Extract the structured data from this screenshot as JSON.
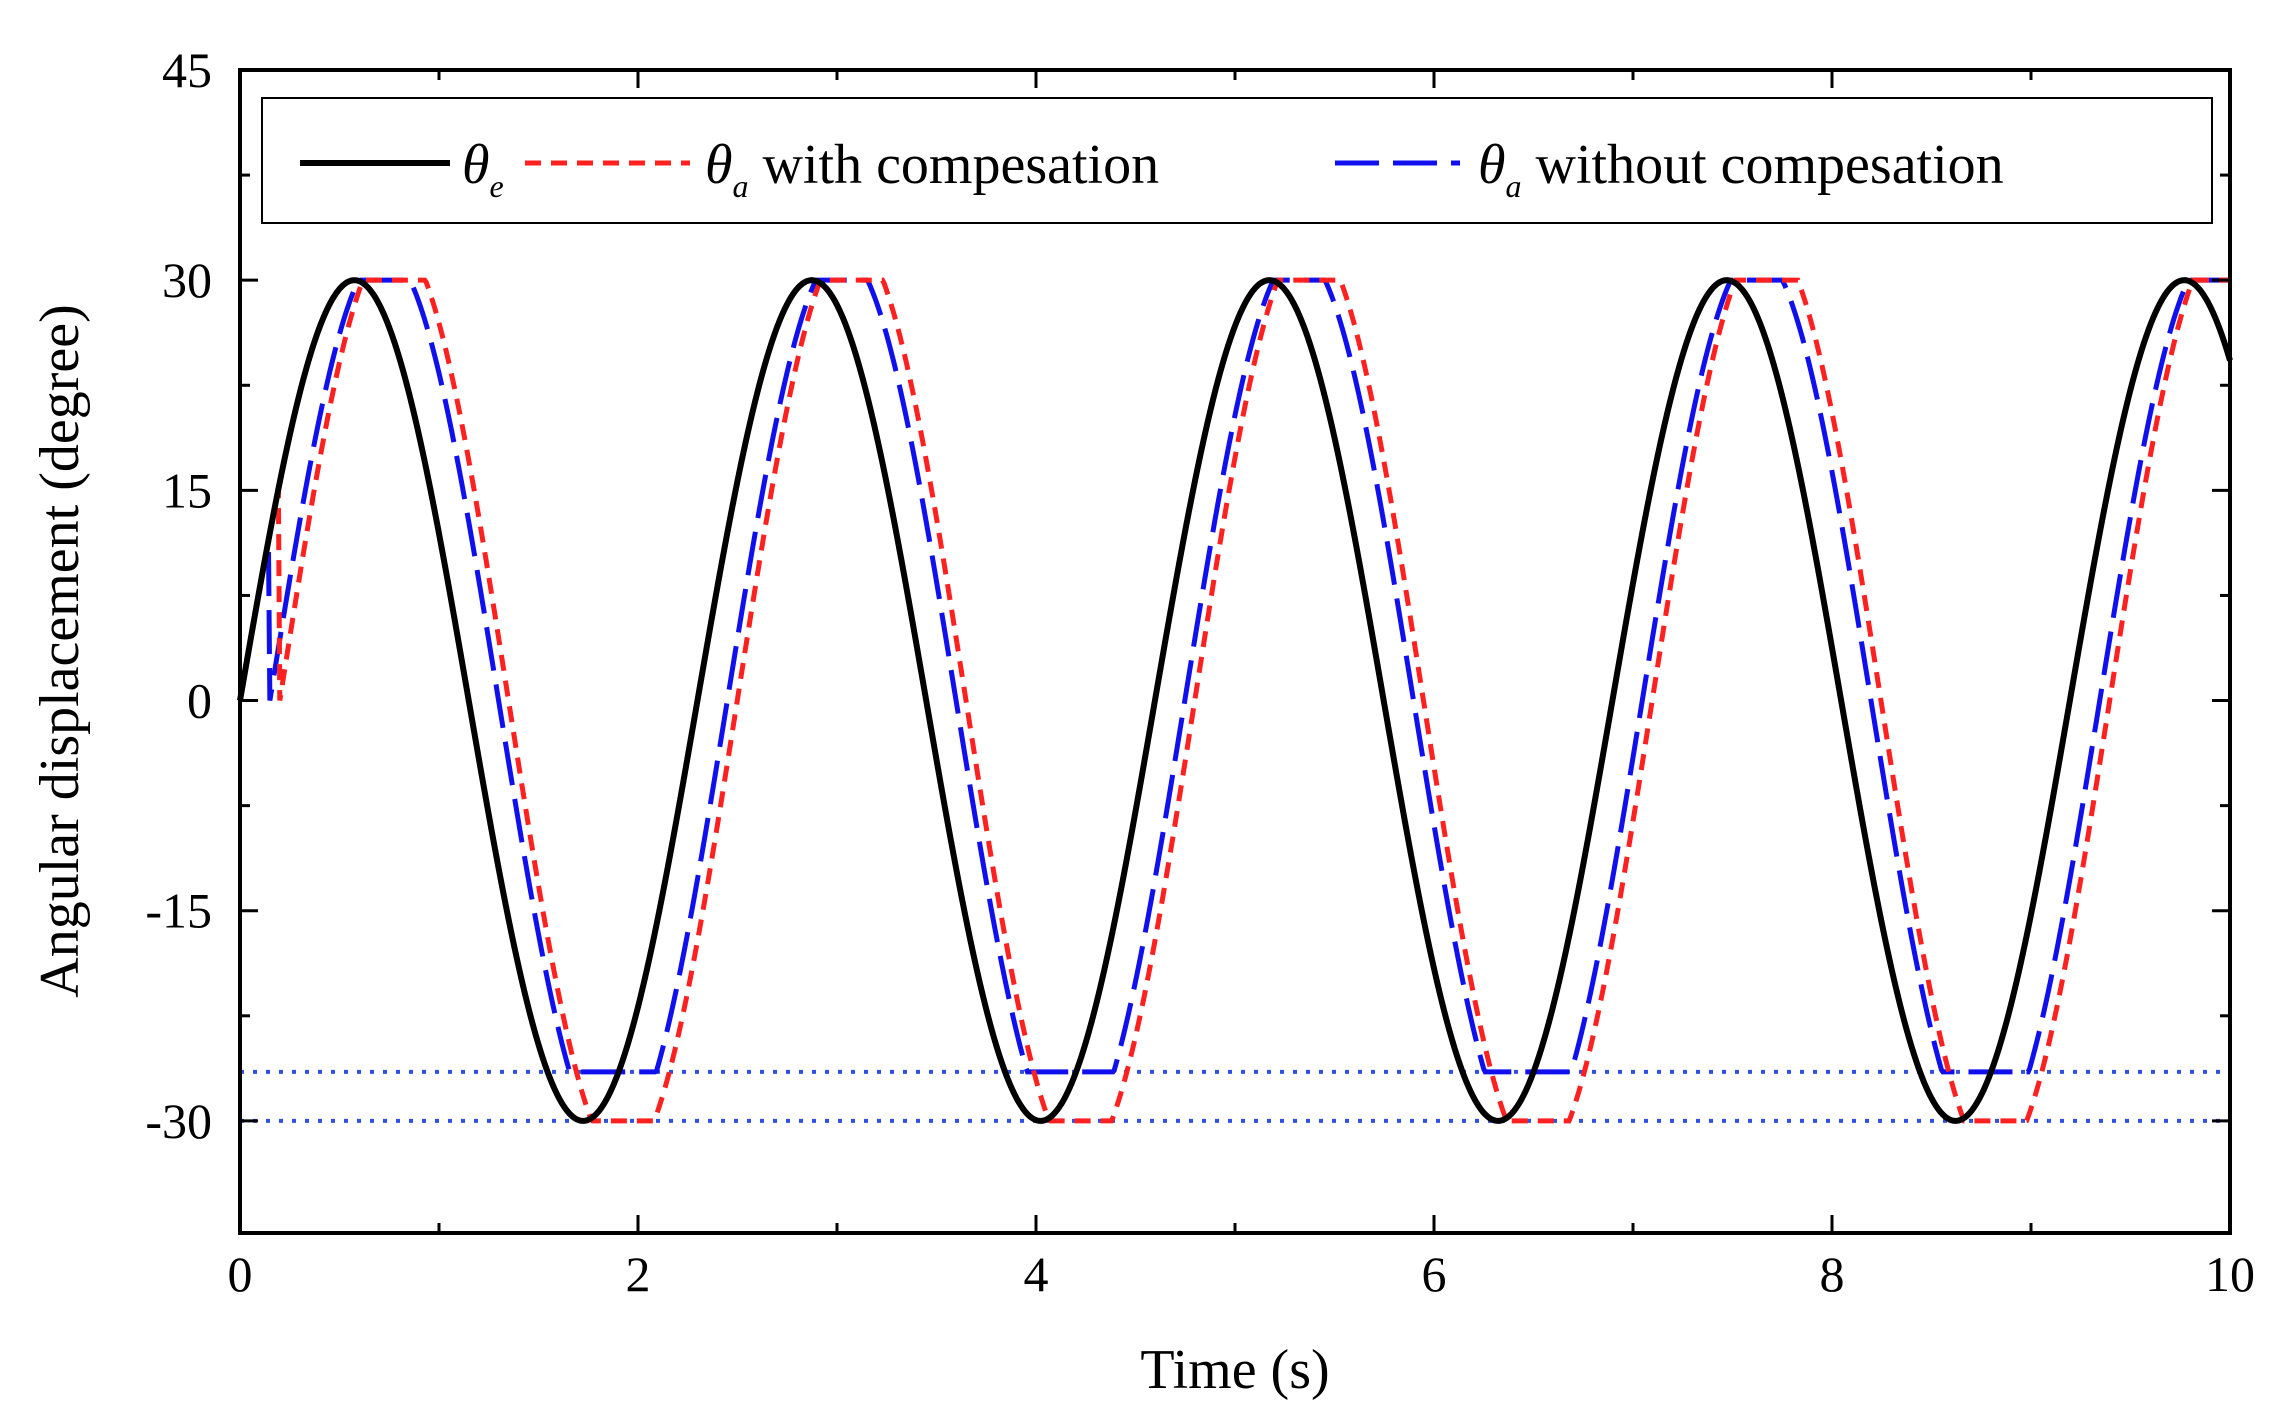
{
  "chart_data": {
    "type": "line",
    "xlabel": "Time (s)",
    "ylabel": "Angular displacement (degree)",
    "xlim": [
      0,
      10
    ],
    "ylim": [
      -38,
      45
    ],
    "x_ticks": [
      0,
      2,
      4,
      6,
      8,
      10
    ],
    "y_ticks": [
      -30,
      -15,
      0,
      15,
      30,
      45
    ],
    "grid": false,
    "legend_position": "top",
    "frequency_hz": 0.435,
    "amplitude_deg": 30,
    "series": [
      {
        "name": "θe",
        "symbol": "θ",
        "subscript": "e",
        "label_suffix": "",
        "style": "solid",
        "color": "#000000",
        "amplitude": 30,
        "phase_lag_s": 0.0,
        "saturation": [
          -30,
          30
        ]
      },
      {
        "name": "θa with compesation",
        "symbol": "θ",
        "subscript": "a",
        "label_suffix": " with compesation",
        "style": "short-dash",
        "color": "#ff2020",
        "amplitude": 33,
        "phase_lag_s": 0.2,
        "saturation": [
          -30,
          30
        ]
      },
      {
        "name": "θa without compesation",
        "symbol": "θ",
        "subscript": "a",
        "label_suffix": " without compesation",
        "style": "long-dash",
        "color": "#1010ee",
        "amplitude": 32,
        "phase_lag_s": 0.15,
        "saturation": [
          -26.5,
          30
        ]
      }
    ],
    "reference_lines": [
      {
        "y": -26.5,
        "style": "dotted",
        "color": "#3050e0"
      },
      {
        "y": -30,
        "style": "dotted",
        "color": "#3050e0"
      }
    ]
  }
}
